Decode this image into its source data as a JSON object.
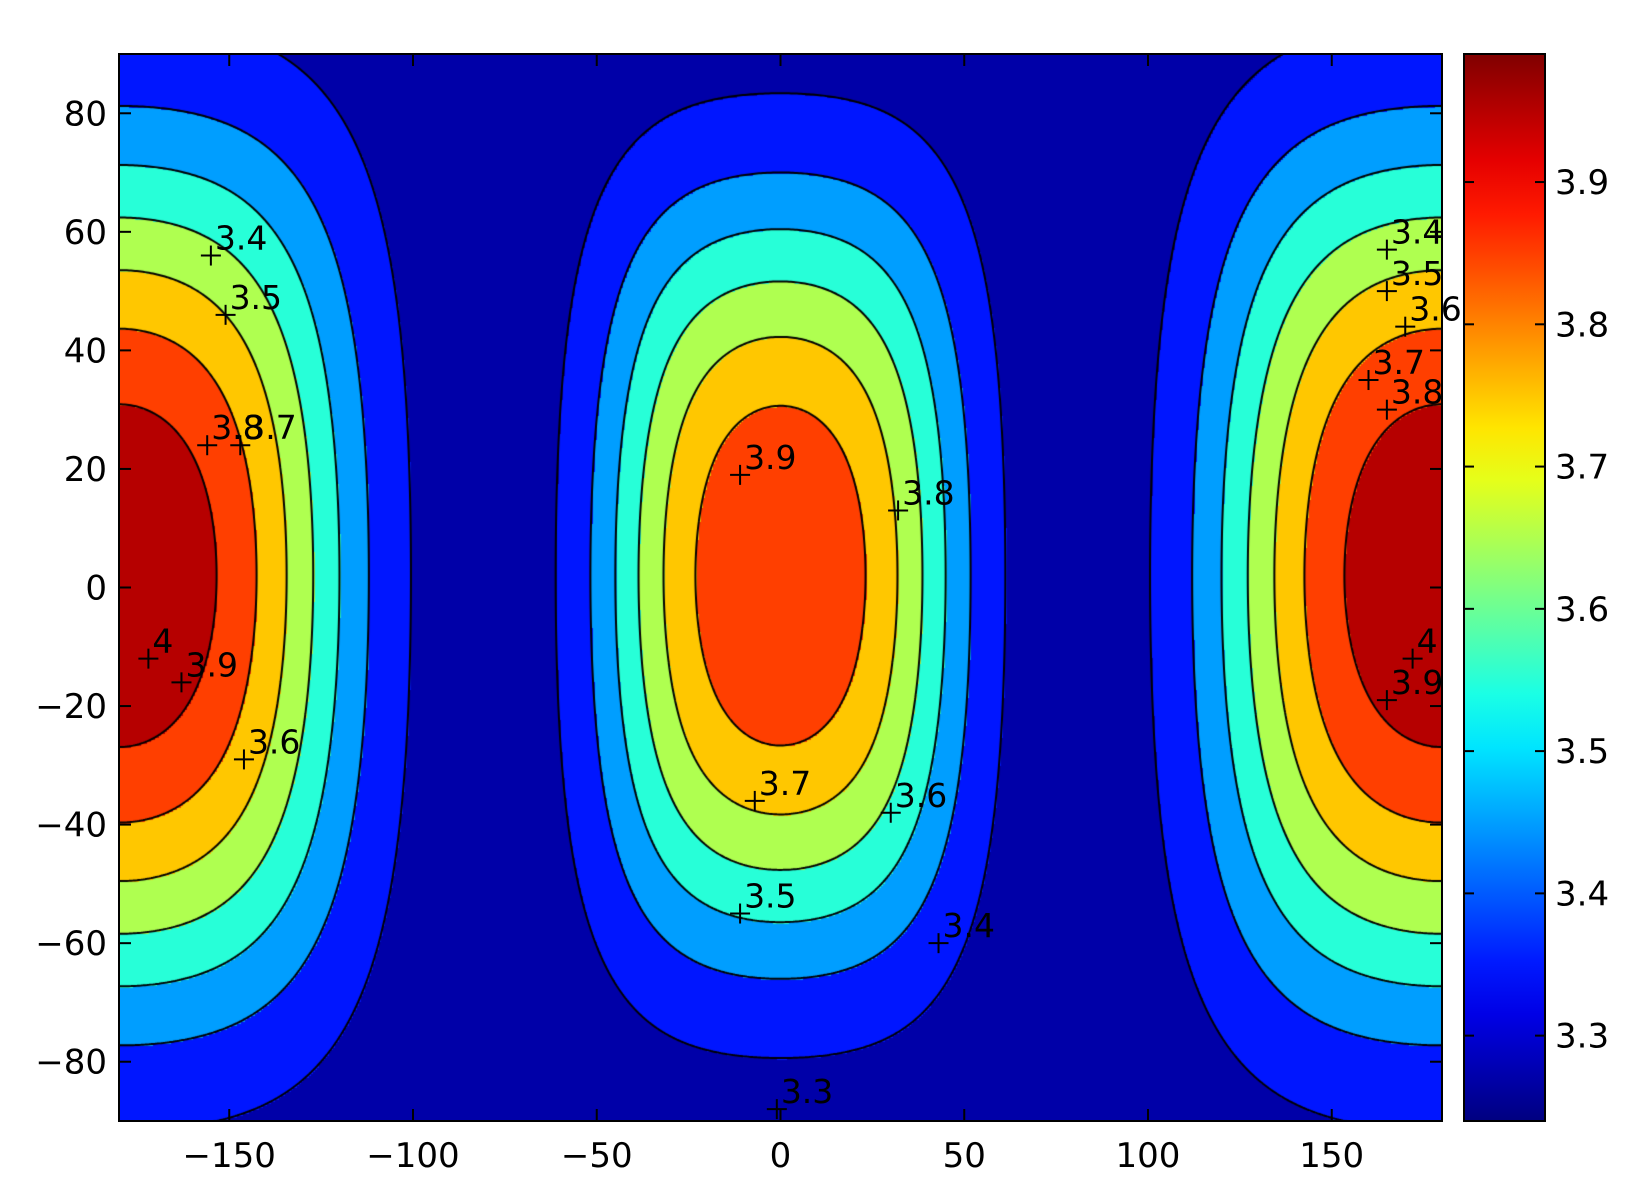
{
  "chart_data": {
    "type": "heatmap",
    "subtype": "filled-contour",
    "title": "",
    "xlabel": "",
    "ylabel": "",
    "xlim": [
      -180,
      180
    ],
    "ylim": [
      -90,
      90
    ],
    "x_ticks": [
      -150,
      -100,
      -50,
      0,
      50,
      100,
      150
    ],
    "y_ticks": [
      -80,
      -60,
      -40,
      -20,
      0,
      20,
      40,
      60,
      80
    ],
    "colormap": "jet",
    "colorbar": {
      "range": [
        3.24,
        3.99
      ],
      "ticks": [
        3.3,
        3.4,
        3.5,
        3.6,
        3.7,
        3.8,
        3.9
      ],
      "placement": "right"
    },
    "contour_levels": [
      3.3,
      3.4,
      3.5,
      3.6,
      3.7,
      3.8,
      3.9,
      4.0
    ],
    "grid": false,
    "contour_labels": [
      {
        "text": "3.3",
        "x": -1,
        "y": -88
      },
      {
        "text": "3.4",
        "x": -155,
        "y": 56
      },
      {
        "text": "3.5",
        "x": -151,
        "y": 46
      },
      {
        "text": "3.8",
        "x": -156,
        "y": 24
      },
      {
        "text": "3.7",
        "x": -147,
        "y": 24
      },
      {
        "text": "3.6",
        "x": -146,
        "y": -29
      },
      {
        "text": "4",
        "x": -172,
        "y": -12
      },
      {
        "text": "3.9",
        "x": -163,
        "y": -16
      },
      {
        "text": "3.9",
        "x": -11,
        "y": 19
      },
      {
        "text": "3.8",
        "x": 32,
        "y": 13
      },
      {
        "text": "3.7",
        "x": -7,
        "y": -36
      },
      {
        "text": "3.6",
        "x": 30,
        "y": -38
      },
      {
        "text": "3.5",
        "x": -11,
        "y": -55
      },
      {
        "text": "3.4",
        "x": 43,
        "y": -60
      },
      {
        "text": "3.4",
        "x": 165,
        "y": 57
      },
      {
        "text": "3.5",
        "x": 165,
        "y": 50
      },
      {
        "text": "3.6",
        "x": 170,
        "y": 44
      },
      {
        "text": "3.7",
        "x": 160,
        "y": 35
      },
      {
        "text": "3.8",
        "x": 165,
        "y": 30
      },
      {
        "text": "4",
        "x": 172,
        "y": -12
      },
      {
        "text": "3.9",
        "x": 165,
        "y": -19
      }
    ],
    "field": {
      "description_hidden": false,
      "bumps": [
        {
          "cx": -180,
          "cy": 2,
          "amp": 0.75,
          "sx": 46,
          "sy": 52
        },
        {
          "cx": 180,
          "cy": 2,
          "amp": 0.75,
          "sx": 46,
          "sy": 52
        },
        {
          "cx": 0,
          "cy": 2,
          "amp": 0.66,
          "sx": 36,
          "sy": 46
        }
      ],
      "base": 3.24
    }
  }
}
